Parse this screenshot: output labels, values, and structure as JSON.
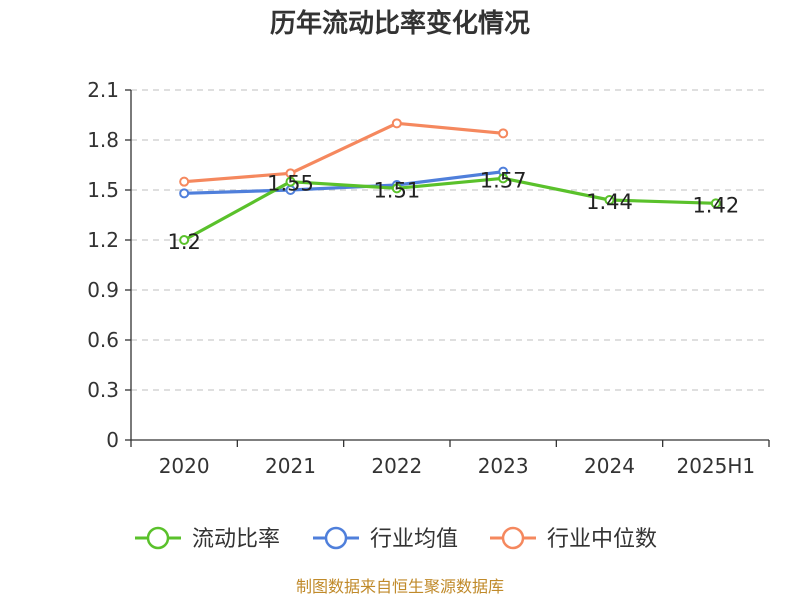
{
  "chart_data": {
    "type": "line",
    "title": "历年流动比率变化情况",
    "categories": [
      "2020",
      "2021",
      "2022",
      "2023",
      "2024",
      "2025H1"
    ],
    "ylim": [
      0,
      2.1
    ],
    "yticks": [
      0,
      0.3,
      0.6,
      0.9,
      1.2,
      1.5,
      1.8,
      2.1
    ],
    "ytick_labels": [
      "0",
      "0.3",
      "0.6",
      "0.9",
      "1.2",
      "1.5",
      "1.8",
      "2.1"
    ],
    "grid": true,
    "legend_position": "bottom",
    "series": [
      {
        "name": "流动比率",
        "color": "#5ac12b",
        "values": [
          1.2,
          1.55,
          1.51,
          1.57,
          1.44,
          1.42
        ],
        "labels": [
          "1.2",
          "1.55",
          "1.51",
          "1.57",
          "1.44",
          "1.42"
        ],
        "show_labels": true
      },
      {
        "name": "行业均值",
        "color": "#4f7fdb",
        "values": [
          1.48,
          1.5,
          1.53,
          1.61,
          null,
          null
        ],
        "show_labels": false
      },
      {
        "name": "行业中位数",
        "color": "#f5885e",
        "values": [
          1.55,
          1.6,
          1.9,
          1.84,
          null,
          null
        ],
        "show_labels": false
      }
    ]
  },
  "source": "制图数据来自恒生聚源数据库"
}
